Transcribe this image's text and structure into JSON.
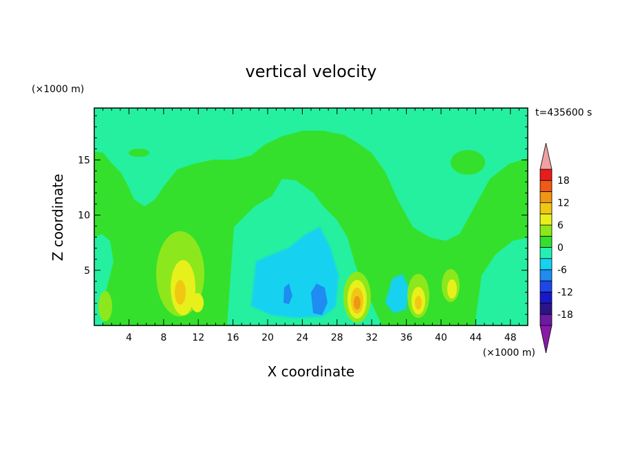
{
  "chart_data": {
    "type": "heatmap",
    "title": "vertical velocity",
    "xlabel": "X coordinate",
    "ylabel": "Z coordinate",
    "x_unit": "(×1000 m)",
    "y_unit": "(×1000 m)",
    "time_label": "t=435600 s",
    "xlim": [
      0,
      50
    ],
    "ylim": [
      0,
      19.7
    ],
    "x_ticks": [
      4,
      8,
      12,
      16,
      20,
      24,
      28,
      32,
      36,
      40,
      44,
      48
    ],
    "y_ticks": [
      5,
      10,
      15
    ],
    "colorbar": {
      "levels": [
        -21,
        -18,
        -15,
        -12,
        -9,
        -6,
        -3,
        0,
        3,
        6,
        9,
        12,
        15,
        18,
        21
      ],
      "tick_labels": [
        18,
        12,
        6,
        0,
        -6,
        -12,
        -18
      ],
      "colors": [
        "#6a1aa3",
        "#2a1488",
        "#1818c8",
        "#1e46e8",
        "#1e8cf0",
        "#14d2f0",
        "#24f0b4",
        "#34e02c",
        "#8ce81c",
        "#e8f01c",
        "#f0c814",
        "#f09614",
        "#f05a14",
        "#e81c1c"
      ],
      "under_color": "#8a1aa8",
      "over_color": "#f0a0a0"
    },
    "background_value_color": "#24f0a0",
    "features": [
      {
        "kind": "updraft",
        "x": 10.0,
        "z": 3.0,
        "peak": 5
      },
      {
        "kind": "updraft",
        "x": 11.5,
        "z": 2.0,
        "peak": 6
      },
      {
        "kind": "updraft",
        "x": 30.5,
        "z": 2.2,
        "peak": 12
      },
      {
        "kind": "updraft",
        "x": 37.5,
        "z": 2.5,
        "peak": 7
      },
      {
        "kind": "updraft",
        "x": 41.5,
        "z": 3.5,
        "peak": 4
      },
      {
        "kind": "updraft",
        "x": 1.5,
        "z": 1.8,
        "peak": 3
      },
      {
        "kind": "downdraft",
        "x": 26.0,
        "z": 2.0,
        "peak": -9
      },
      {
        "kind": "downdraft",
        "x": 22.5,
        "z": 3.0,
        "peak": -6
      }
    ]
  }
}
